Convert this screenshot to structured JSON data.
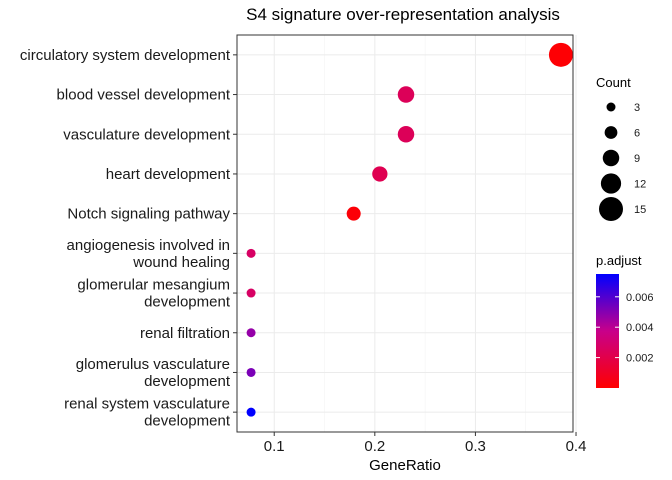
{
  "chart_data": {
    "type": "scatter",
    "title": "S4 signature over-representation analysis",
    "xlabel": "GeneRatio",
    "ylabel": "",
    "xlim": [
      0.063,
      0.397
    ],
    "xticks": [
      "0.1",
      "0.2",
      "0.3",
      "0.4"
    ],
    "xtick_values": [
      0.1,
      0.2,
      0.3,
      0.4
    ],
    "grid": true,
    "categories": [
      [
        "circulatory system development"
      ],
      [
        "blood vessel development"
      ],
      [
        "vasculature development"
      ],
      [
        "heart development"
      ],
      [
        "Notch signaling pathway"
      ],
      [
        "angiogenesis involved in",
        "wound healing"
      ],
      [
        "glomerular mesangium",
        "development"
      ],
      [
        "renal filtration"
      ],
      [
        "glomerulus vasculature",
        "development"
      ],
      [
        "renal system vasculature",
        "development"
      ]
    ],
    "points": [
      {
        "x": 0.385,
        "count": 15,
        "p_adjust": 0.0001
      },
      {
        "x": 0.231,
        "count": 9,
        "p_adjust": 0.0024
      },
      {
        "x": 0.231,
        "count": 9,
        "p_adjust": 0.0024
      },
      {
        "x": 0.205,
        "count": 8,
        "p_adjust": 0.0022
      },
      {
        "x": 0.179,
        "count": 7,
        "p_adjust": 0.0002
      },
      {
        "x": 0.077,
        "count": 3,
        "p_adjust": 0.0027
      },
      {
        "x": 0.077,
        "count": 3,
        "p_adjust": 0.0027
      },
      {
        "x": 0.077,
        "count": 3,
        "p_adjust": 0.0047
      },
      {
        "x": 0.077,
        "count": 3,
        "p_adjust": 0.0052
      },
      {
        "x": 0.077,
        "count": 3,
        "p_adjust": 0.0075
      }
    ],
    "size_legend": {
      "title": "Count",
      "values": [
        3,
        6,
        9,
        12,
        15
      ],
      "labels": [
        "3",
        "6",
        "9",
        "12",
        "15"
      ]
    },
    "color_legend": {
      "title": "p.adjust",
      "min": 0.0,
      "max": 0.0075,
      "tick_values": [
        0.002,
        0.004,
        0.006
      ],
      "tick_labels": [
        "0.002",
        "0.004",
        "0.006"
      ],
      "low_color": "#ff0000",
      "high_color": "#0000ff"
    },
    "legend_position": "right"
  }
}
